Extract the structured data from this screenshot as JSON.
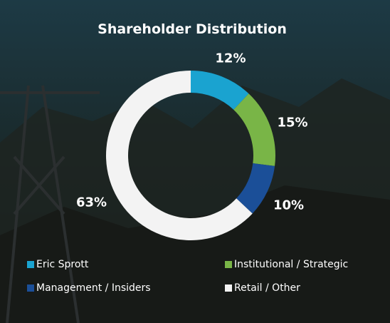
{
  "chart_data": {
    "type": "donut",
    "title": "Shareholder Distribution",
    "categories": [
      "Eric Sprott",
      "Institutional / Strategic",
      "Management / Insiders",
      "Retail / Other"
    ],
    "values": [
      12,
      15,
      10,
      63
    ],
    "value_labels": [
      "12%",
      "15%",
      "10%",
      "63%"
    ],
    "colors": [
      "#1aa3d0",
      "#79b547",
      "#1b4f98",
      "#f3f3f3"
    ]
  }
}
